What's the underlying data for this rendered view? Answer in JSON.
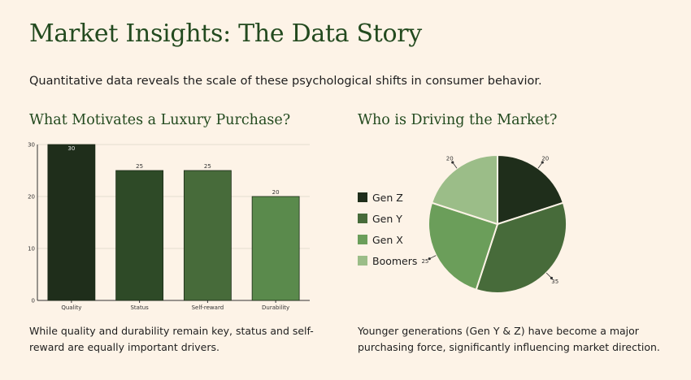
{
  "page": {
    "title": "Market Insights: The Data Story",
    "subtitle": "Quantitative data reveals the scale of these psychological shifts in consumer behavior."
  },
  "bar_section": {
    "title": "What Motivates a Luxury Purchase?",
    "caption": "While quality and durability remain key, status and self-reward are equally important drivers."
  },
  "pie_section": {
    "title": "Who is Driving the Market?",
    "caption": "Younger generations (Gen Y & Z) have become a major purchasing force, significantly influencing market direction."
  },
  "chart_data": [
    {
      "type": "bar",
      "categories": [
        "Quality",
        "Status",
        "Self-reward",
        "Durability"
      ],
      "values": [
        30,
        25,
        25,
        20
      ],
      "ylim": [
        0,
        30
      ],
      "yticks": [
        0,
        10,
        20,
        30
      ],
      "grid": true,
      "colors": [
        "#1f2e1b",
        "#2e4a27",
        "#476b3a",
        "#5a8a4c"
      ]
    },
    {
      "type": "pie",
      "labels": [
        "Gen Z",
        "Gen Y",
        "Gen X",
        "Boomers"
      ],
      "values": [
        20,
        35,
        25,
        20
      ],
      "colors": [
        "#1f2e1b",
        "#476b3a",
        "#6b9e5a",
        "#9bbd88"
      ],
      "legend": "left"
    }
  ]
}
